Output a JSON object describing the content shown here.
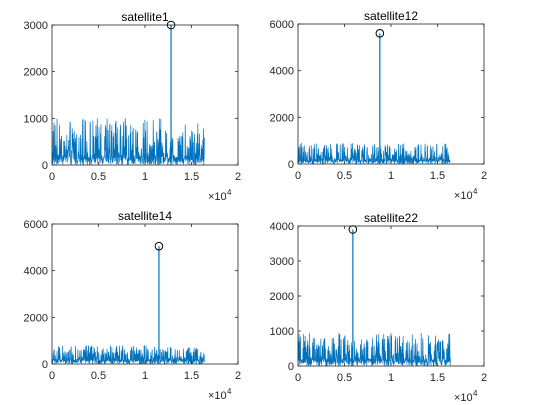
{
  "figure": {
    "line_color": "#0072BD",
    "marker": "circle"
  },
  "chart_data": [
    {
      "type": "line",
      "title": "satellite1",
      "xlim": [
        0,
        20000
      ],
      "ylim": [
        0,
        3000
      ],
      "x_ticks": [
        "0",
        "0.5",
        "1",
        "1.5",
        "2"
      ],
      "y_ticks": [
        "0",
        "1000",
        "2000",
        "3000"
      ],
      "x_exponent_base": "×10",
      "x_exponent": "4",
      "series": [
        {
          "x_range": [
            0,
            16384
          ],
          "noise_floor": 350,
          "noise_max": 1000,
          "peak": {
            "x": 12800,
            "y": 3000
          }
        }
      ]
    },
    {
      "type": "line",
      "title": "satellite12",
      "xlim": [
        0,
        20000
      ],
      "ylim": [
        0,
        6000
      ],
      "x_ticks": [
        "0",
        "0.5",
        "1",
        "1.5",
        "2"
      ],
      "y_ticks": [
        "0",
        "2000",
        "4000",
        "6000"
      ],
      "x_exponent_base": "×10",
      "x_exponent": "4",
      "series": [
        {
          "x_range": [
            0,
            16384
          ],
          "noise_floor": 350,
          "noise_max": 900,
          "peak": {
            "x": 8800,
            "y": 5600
          }
        }
      ]
    },
    {
      "type": "line",
      "title": "satellite14",
      "xlim": [
        0,
        20000
      ],
      "ylim": [
        0,
        6000
      ],
      "x_ticks": [
        "0",
        "0.5",
        "1",
        "1.5",
        "2"
      ],
      "y_ticks": [
        "0",
        "2000",
        "4000",
        "6000"
      ],
      "x_exponent_base": "×10",
      "x_exponent": "4",
      "series": [
        {
          "x_range": [
            0,
            16384
          ],
          "noise_floor": 350,
          "noise_max": 800,
          "peak": {
            "x": 11500,
            "y": 5050
          }
        }
      ]
    },
    {
      "type": "line",
      "title": "satellite22",
      "xlim": [
        0,
        20000
      ],
      "ylim": [
        0,
        4000
      ],
      "x_ticks": [
        "0",
        "0.5",
        "1",
        "1.5",
        "2"
      ],
      "y_ticks": [
        "0",
        "1000",
        "2000",
        "3000",
        "4000"
      ],
      "x_exponent_base": "×10",
      "x_exponent": "4",
      "series": [
        {
          "x_range": [
            0,
            16384
          ],
          "noise_floor": 350,
          "noise_max": 950,
          "peak": {
            "x": 5900,
            "y": 3900
          }
        }
      ]
    }
  ]
}
